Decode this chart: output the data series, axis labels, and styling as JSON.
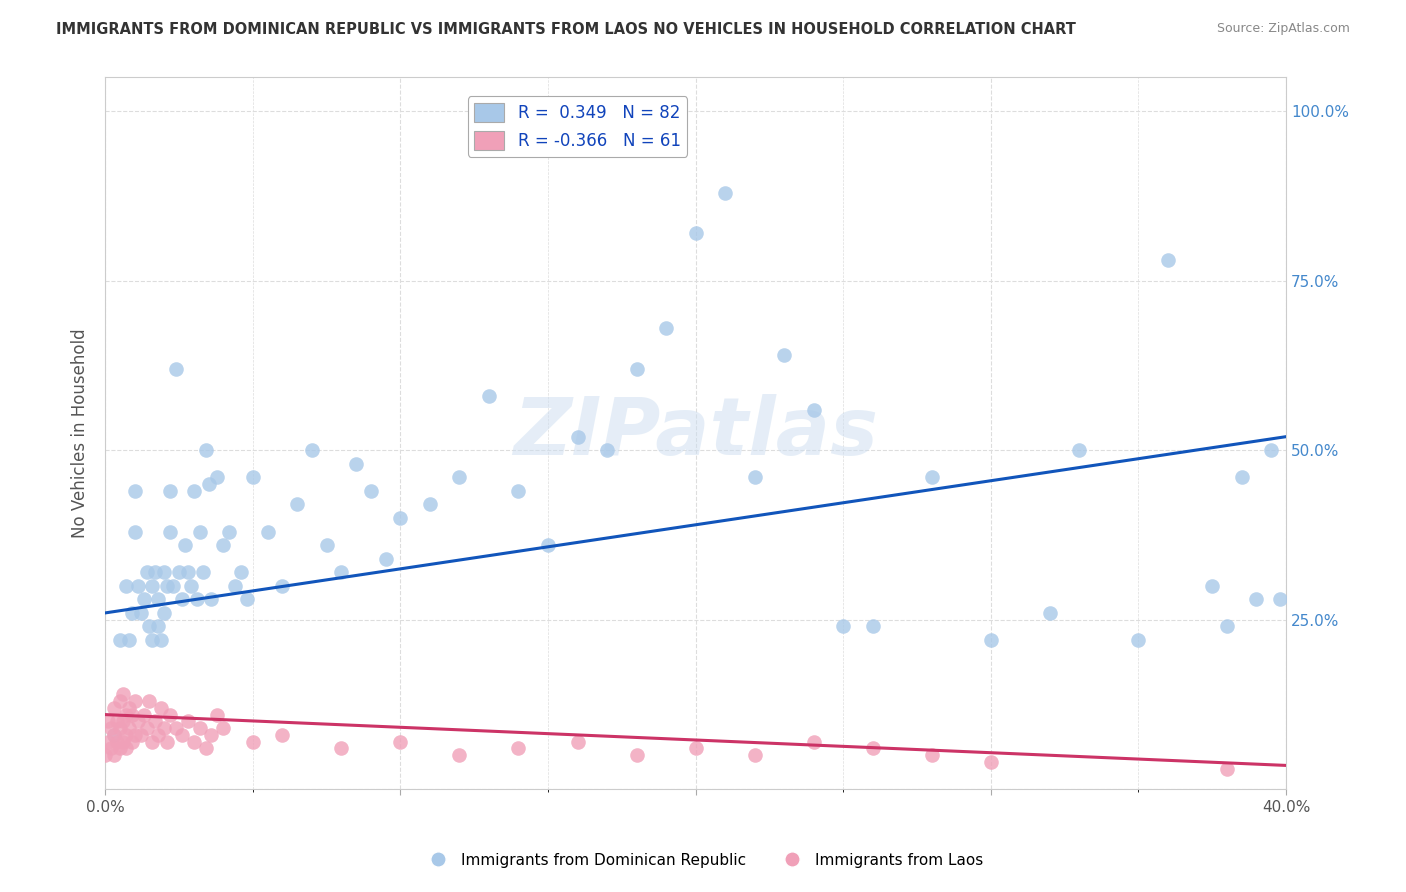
{
  "title": "IMMIGRANTS FROM DOMINICAN REPUBLIC VS IMMIGRANTS FROM LAOS NO VEHICLES IN HOUSEHOLD CORRELATION CHART",
  "source": "Source: ZipAtlas.com",
  "ylabel": "No Vehicles in Household",
  "xlim": [
    0.0,
    0.4
  ],
  "ylim": [
    0.0,
    1.05
  ],
  "blue_R": 0.349,
  "blue_N": 82,
  "pink_R": -0.366,
  "pink_N": 61,
  "blue_color": "#a8c8e8",
  "pink_color": "#f0a0b8",
  "blue_line_color": "#1155bb",
  "pink_line_color": "#cc3366",
  "watermark_text": "ZIPatlas",
  "legend_items": [
    "Immigrants from Dominican Republic",
    "Immigrants from Laos"
  ],
  "blue_scatter_x": [
    0.003,
    0.005,
    0.007,
    0.008,
    0.009,
    0.01,
    0.01,
    0.011,
    0.012,
    0.013,
    0.014,
    0.015,
    0.016,
    0.016,
    0.017,
    0.018,
    0.018,
    0.019,
    0.02,
    0.02,
    0.021,
    0.022,
    0.022,
    0.023,
    0.024,
    0.025,
    0.026,
    0.027,
    0.028,
    0.029,
    0.03,
    0.031,
    0.032,
    0.033,
    0.034,
    0.035,
    0.036,
    0.038,
    0.04,
    0.042,
    0.044,
    0.046,
    0.048,
    0.05,
    0.055,
    0.06,
    0.065,
    0.07,
    0.075,
    0.08,
    0.085,
    0.09,
    0.095,
    0.1,
    0.11,
    0.12,
    0.13,
    0.14,
    0.15,
    0.16,
    0.17,
    0.18,
    0.19,
    0.2,
    0.21,
    0.22,
    0.23,
    0.24,
    0.25,
    0.26,
    0.28,
    0.3,
    0.32,
    0.33,
    0.35,
    0.36,
    0.375,
    0.38,
    0.385,
    0.39,
    0.395,
    0.398
  ],
  "blue_scatter_y": [
    0.08,
    0.22,
    0.3,
    0.22,
    0.26,
    0.44,
    0.38,
    0.3,
    0.26,
    0.28,
    0.32,
    0.24,
    0.22,
    0.3,
    0.32,
    0.24,
    0.28,
    0.22,
    0.32,
    0.26,
    0.3,
    0.44,
    0.38,
    0.3,
    0.62,
    0.32,
    0.28,
    0.36,
    0.32,
    0.3,
    0.44,
    0.28,
    0.38,
    0.32,
    0.5,
    0.45,
    0.28,
    0.46,
    0.36,
    0.38,
    0.3,
    0.32,
    0.28,
    0.46,
    0.38,
    0.3,
    0.42,
    0.5,
    0.36,
    0.32,
    0.48,
    0.44,
    0.34,
    0.4,
    0.42,
    0.46,
    0.58,
    0.44,
    0.36,
    0.52,
    0.5,
    0.62,
    0.68,
    0.82,
    0.88,
    0.46,
    0.64,
    0.56,
    0.24,
    0.24,
    0.46,
    0.22,
    0.26,
    0.5,
    0.22,
    0.78,
    0.3,
    0.24,
    0.46,
    0.28,
    0.5,
    0.28
  ],
  "pink_scatter_x": [
    0.0,
    0.001,
    0.001,
    0.002,
    0.002,
    0.003,
    0.003,
    0.003,
    0.004,
    0.004,
    0.005,
    0.005,
    0.005,
    0.006,
    0.006,
    0.006,
    0.007,
    0.007,
    0.007,
    0.008,
    0.008,
    0.009,
    0.009,
    0.01,
    0.01,
    0.011,
    0.012,
    0.013,
    0.014,
    0.015,
    0.016,
    0.017,
    0.018,
    0.019,
    0.02,
    0.021,
    0.022,
    0.024,
    0.026,
    0.028,
    0.03,
    0.032,
    0.034,
    0.036,
    0.038,
    0.04,
    0.05,
    0.06,
    0.08,
    0.1,
    0.12,
    0.14,
    0.16,
    0.18,
    0.2,
    0.22,
    0.24,
    0.26,
    0.28,
    0.3,
    0.38
  ],
  "pink_scatter_y": [
    0.05,
    0.07,
    0.1,
    0.06,
    0.09,
    0.05,
    0.08,
    0.12,
    0.07,
    0.1,
    0.06,
    0.09,
    0.13,
    0.07,
    0.1,
    0.14,
    0.08,
    0.11,
    0.06,
    0.09,
    0.12,
    0.07,
    0.11,
    0.08,
    0.13,
    0.1,
    0.08,
    0.11,
    0.09,
    0.13,
    0.07,
    0.1,
    0.08,
    0.12,
    0.09,
    0.07,
    0.11,
    0.09,
    0.08,
    0.1,
    0.07,
    0.09,
    0.06,
    0.08,
    0.11,
    0.09,
    0.07,
    0.08,
    0.06,
    0.07,
    0.05,
    0.06,
    0.07,
    0.05,
    0.06,
    0.05,
    0.07,
    0.06,
    0.05,
    0.04,
    0.03
  ],
  "background_color": "#ffffff",
  "grid_color": "#dddddd"
}
